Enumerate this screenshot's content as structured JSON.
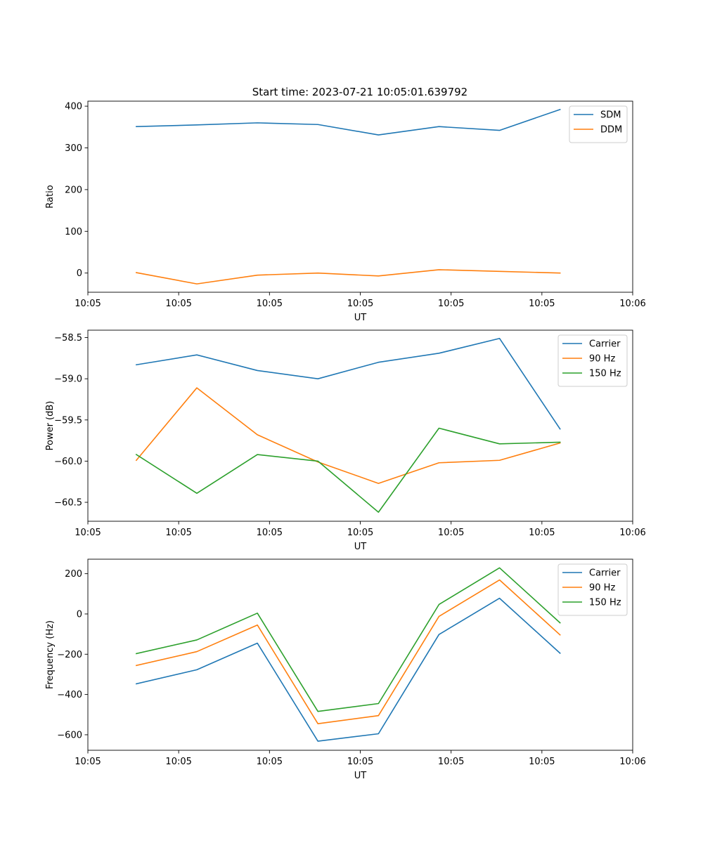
{
  "figure": {
    "title": "Start time: 2023-07-21 10:05:01.639792"
  },
  "colors": {
    "blue": "#1f77b4",
    "orange": "#ff7f0e",
    "green": "#2ca02c"
  },
  "chart_data": [
    {
      "type": "line",
      "title": "Start time: 2023-07-21 10:05:01.639792",
      "xlabel": "UT",
      "ylabel": "Ratio",
      "x": [
        1,
        2,
        3,
        4,
        5,
        6,
        7,
        8
      ],
      "xlim": [
        0.2,
        9.2
      ],
      "xticks": [
        {
          "v": 0.2,
          "label": "10:05"
        },
        {
          "v": 1.7,
          "label": "10:05"
        },
        {
          "v": 3.2,
          "label": "10:05"
        },
        {
          "v": 4.7,
          "label": "10:05"
        },
        {
          "v": 6.2,
          "label": "10:05"
        },
        {
          "v": 7.7,
          "label": "10:05"
        },
        {
          "v": 9.2,
          "label": "10:06"
        }
      ],
      "ylim": [
        -46,
        412
      ],
      "yticks": [
        {
          "v": 0,
          "label": "0"
        },
        {
          "v": 100,
          "label": "100"
        },
        {
          "v": 200,
          "label": "200"
        },
        {
          "v": 300,
          "label": "300"
        },
        {
          "v": 400,
          "label": "400"
        }
      ],
      "legend": "top-right",
      "series": [
        {
          "name": "SDM",
          "color": "blue",
          "values": [
            351,
            355,
            360,
            356,
            331,
            351,
            342,
            392
          ]
        },
        {
          "name": "DDM",
          "color": "orange",
          "values": [
            1,
            -26,
            -5,
            0,
            -7,
            8,
            4,
            0
          ]
        }
      ]
    },
    {
      "type": "line",
      "xlabel": "UT",
      "ylabel": "Power (dB)",
      "x": [
        1,
        2,
        3,
        4,
        5,
        6,
        7,
        8
      ],
      "xlim": [
        0.2,
        9.2
      ],
      "xticks": [
        {
          "v": 0.2,
          "label": "10:05"
        },
        {
          "v": 1.7,
          "label": "10:05"
        },
        {
          "v": 3.2,
          "label": "10:05"
        },
        {
          "v": 4.7,
          "label": "10:05"
        },
        {
          "v": 6.2,
          "label": "10:05"
        },
        {
          "v": 7.7,
          "label": "10:05"
        },
        {
          "v": 9.2,
          "label": "10:06"
        }
      ],
      "ylim": [
        -60.73,
        -58.41
      ],
      "yticks": [
        {
          "v": -58.5,
          "label": "−58.5"
        },
        {
          "v": -59.0,
          "label": "−59.0"
        },
        {
          "v": -59.5,
          "label": "−59.5"
        },
        {
          "v": -60.0,
          "label": "−60.0"
        },
        {
          "v": -60.5,
          "label": "−60.5"
        }
      ],
      "legend": "top-right",
      "series": [
        {
          "name": "Carrier",
          "color": "blue",
          "values": [
            -58.83,
            -58.71,
            -58.9,
            -59.0,
            -58.8,
            -58.69,
            -58.51,
            -59.61
          ]
        },
        {
          "name": "90 Hz",
          "color": "orange",
          "values": [
            -59.99,
            -59.11,
            -59.68,
            -60.01,
            -60.27,
            -60.02,
            -59.99,
            -59.78
          ]
        },
        {
          "name": "150 Hz",
          "color": "green",
          "values": [
            -59.92,
            -60.39,
            -59.92,
            -60.0,
            -60.62,
            -59.6,
            -59.79,
            -59.77
          ]
        }
      ]
    },
    {
      "type": "line",
      "xlabel": "UT",
      "ylabel": "Frequency (Hz)",
      "x": [
        1,
        2,
        3,
        4,
        5,
        6,
        7,
        8
      ],
      "xlim": [
        0.2,
        9.2
      ],
      "xticks": [
        {
          "v": 0.2,
          "label": "10:05"
        },
        {
          "v": 1.7,
          "label": "10:05"
        },
        {
          "v": 3.2,
          "label": "10:05"
        },
        {
          "v": 4.7,
          "label": "10:05"
        },
        {
          "v": 6.2,
          "label": "10:05"
        },
        {
          "v": 7.7,
          "label": "10:05"
        },
        {
          "v": 9.2,
          "label": "10:06"
        }
      ],
      "ylim": [
        -677,
        272
      ],
      "yticks": [
        {
          "v": 200,
          "label": "200"
        },
        {
          "v": 0,
          "label": "0"
        },
        {
          "v": -200,
          "label": "−200"
        },
        {
          "v": -400,
          "label": "−400"
        },
        {
          "v": -600,
          "label": "−600"
        }
      ],
      "legend": "top-right",
      "series": [
        {
          "name": "Carrier",
          "color": "blue",
          "values": [
            -347,
            -277,
            -145,
            -632,
            -595,
            -102,
            78,
            -195
          ]
        },
        {
          "name": "90 Hz",
          "color": "orange",
          "values": [
            -256,
            -187,
            -55,
            -545,
            -505,
            -12,
            169,
            -104
          ]
        },
        {
          "name": "150 Hz",
          "color": "green",
          "values": [
            -197,
            -129,
            4,
            -484,
            -445,
            47,
            229,
            -44
          ]
        }
      ]
    }
  ]
}
